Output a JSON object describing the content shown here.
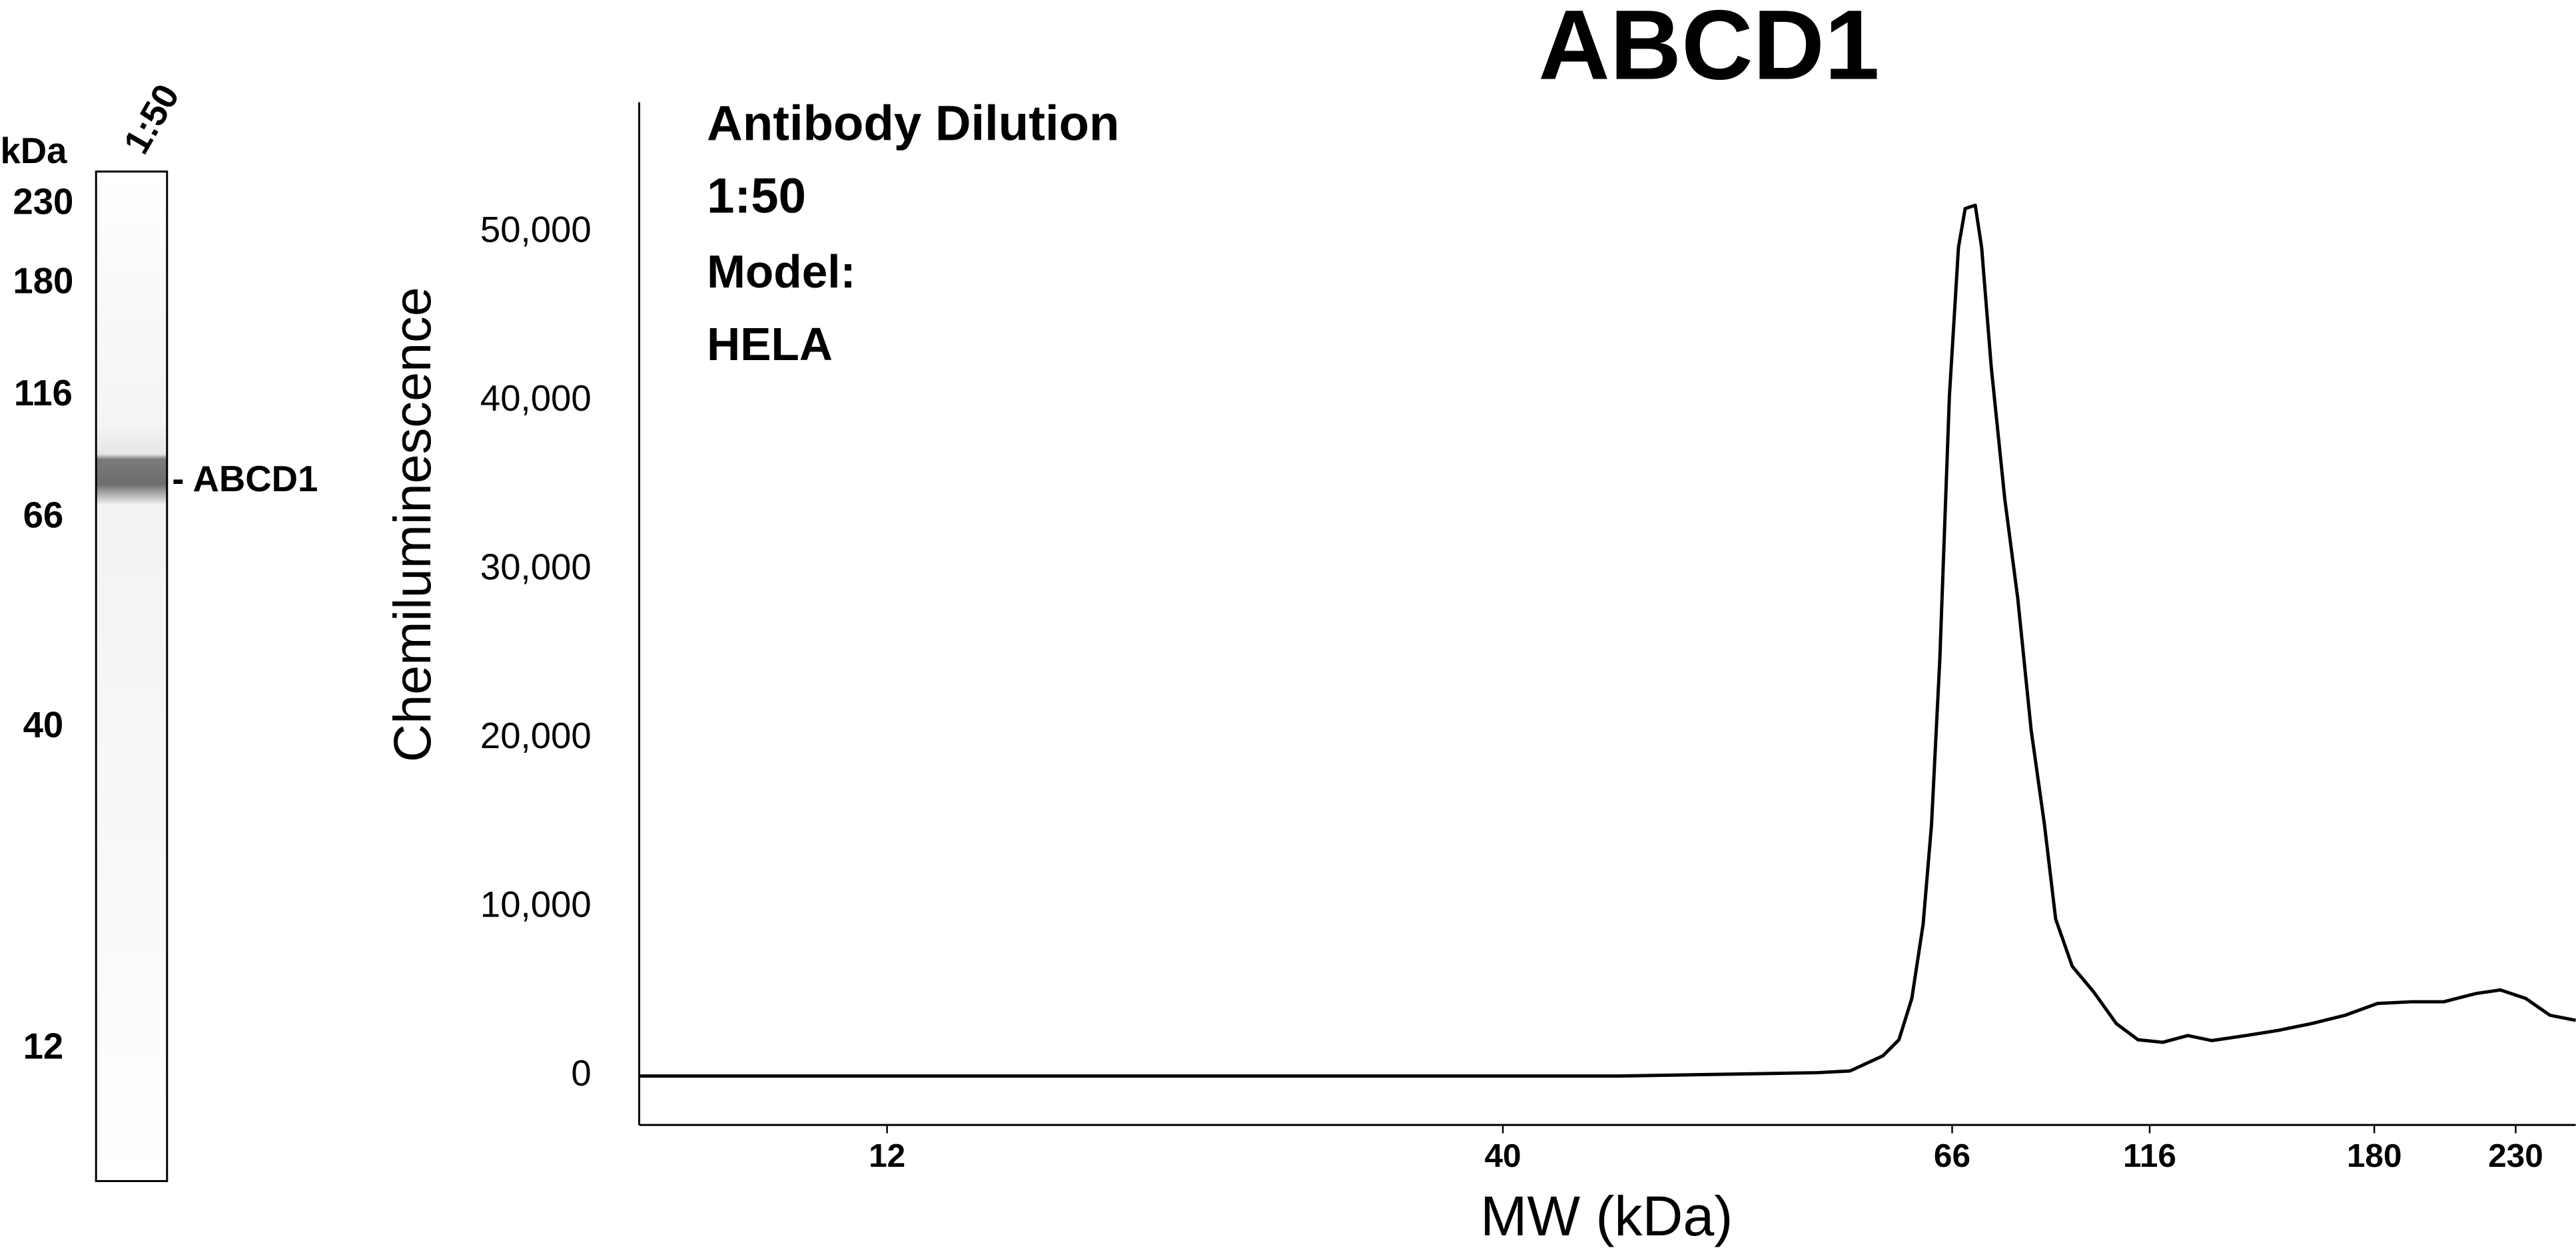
{
  "lane": {
    "unit": "kDa",
    "sample": "1:50",
    "markers": [
      230,
      180,
      116,
      66,
      40,
      12
    ],
    "band_label": "- ABCD1"
  },
  "chart_data": {
    "type": "line",
    "title": "ABCD1",
    "annotations": [
      "Antibody Dilution",
      "1:50",
      "Model:",
      "HELA"
    ],
    "x_label": "MW (kDa)",
    "y_label": "Chemiluminescence",
    "x": [
      7.4,
      12,
      20.3,
      28,
      40,
      45.5,
      50.8,
      56.8,
      58.9,
      61.1,
      62.2,
      63.1,
      63.9,
      64.5,
      65.1,
      65.8,
      67.2,
      68.5,
      70.5,
      71.8,
      73.8,
      76.7,
      79.6,
      82.7,
      85.9,
      88.7,
      93,
      98.8,
      105.5,
      112.2,
      119,
      125,
      131,
      140,
      149,
      159,
      170,
      181,
      192,
      203,
      215,
      224,
      234,
      244,
      255
    ],
    "series": [
      {
        "name": "HELA",
        "color": "#000000",
        "values": [
          0,
          0,
          0,
          0,
          0,
          0,
          100,
          200,
          300,
          1200,
          2150,
          4600,
          9000,
          14900,
          24700,
          40300,
          49100,
          51400,
          51600,
          49100,
          42000,
          34200,
          28300,
          20500,
          14900,
          9300,
          6500,
          5000,
          3100,
          2150,
          2000,
          2400,
          2100,
          2400,
          2700,
          3100,
          3600,
          4300,
          4400,
          4400,
          4900,
          5100,
          4600,
          3600,
          3300
        ]
      }
    ],
    "xlim": [
      7.4,
      255
    ],
    "xticks": [
      12,
      40,
      66,
      116,
      180,
      230
    ],
    "ylim": [
      -2900,
      57700
    ],
    "yticks": [
      0,
      {
        "value": 10000,
        "label": "10,000"
      },
      {
        "value": 20000,
        "label": "20,000"
      },
      {
        "value": 30000,
        "label": "30,000"
      },
      {
        "value": 40000,
        "label": "40,000"
      },
      {
        "value": 50000,
        "label": "50,000"
      }
    ],
    "grid": false
  }
}
